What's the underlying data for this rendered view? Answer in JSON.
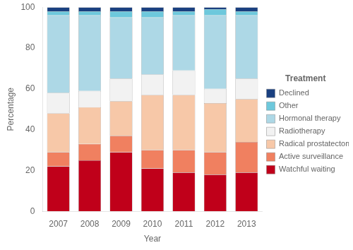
{
  "chart_data": {
    "type": "bar",
    "stacked": true,
    "categories": [
      "2007",
      "2008",
      "2009",
      "2010",
      "2011",
      "2012",
      "2013"
    ],
    "series": [
      {
        "name": "Watchful waiting",
        "color": "#c0001a",
        "values": [
          22,
          25,
          29,
          21,
          19,
          18,
          19
        ]
      },
      {
        "name": "Active surveillance",
        "color": "#f08060",
        "values": [
          7,
          8,
          8,
          9,
          11,
          11,
          15
        ]
      },
      {
        "name": "Radical prostatectomy",
        "color": "#f7c8a8",
        "values": [
          19,
          18,
          17,
          27,
          27,
          24,
          21
        ]
      },
      {
        "name": "Radiotherapy",
        "color": "#f2f2f2",
        "values": [
          10,
          8,
          11,
          10,
          12,
          7,
          10
        ]
      },
      {
        "name": "Hormonal therapy",
        "color": "#add8e6",
        "values": [
          38,
          37,
          30,
          28,
          27,
          36,
          31
        ]
      },
      {
        "name": "Other",
        "color": "#6dc8dc",
        "values": [
          2,
          2,
          3,
          3,
          2,
          3,
          2
        ]
      },
      {
        "name": "Declined",
        "color": "#1a4080",
        "values": [
          2,
          2,
          2,
          2,
          2,
          1,
          2
        ]
      }
    ],
    "xlabel": "Year",
    "ylabel": "Percentage",
    "legend_title": "Treatment",
    "legend": "right",
    "ylim": [
      0,
      100
    ],
    "yticks": [
      0,
      20,
      40,
      60,
      80,
      100
    ],
    "grid": false
  }
}
